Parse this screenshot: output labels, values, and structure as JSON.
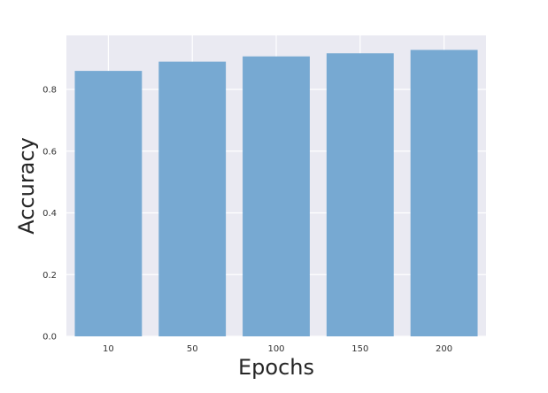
{
  "chart_data": {
    "type": "bar",
    "title": "",
    "xlabel": "Epochs",
    "ylabel": "Accuracy",
    "categories": [
      "10",
      "50",
      "100",
      "150",
      "200"
    ],
    "values": [
      0.86,
      0.89,
      0.907,
      0.917,
      0.928
    ],
    "ylim": [
      0,
      0.975
    ],
    "yticks": [
      0.0,
      0.2,
      0.4,
      0.6,
      0.8
    ],
    "ytick_labels": [
      "0.0",
      "0.2",
      "0.4",
      "0.6",
      "0.8"
    ],
    "grid": true,
    "colors": {
      "bar": "#77a9d2",
      "plot_background": "#eaeaf2",
      "grid": "#ffffff"
    }
  }
}
